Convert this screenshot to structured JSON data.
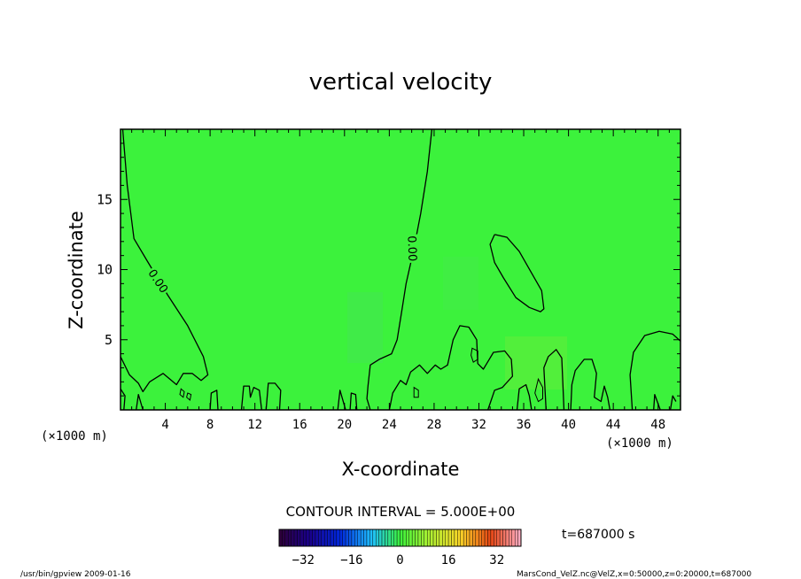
{
  "chart_data": {
    "type": "contour",
    "title": "vertical velocity",
    "xlabel": "X-coordinate",
    "ylabel": "Z-coordinate",
    "x_unit": "(×1000 m)",
    "x_unit_right": "(×1000 m)",
    "xlim": [
      0,
      50
    ],
    "ylim": [
      0,
      20
    ],
    "x_ticks": [
      4,
      8,
      12,
      16,
      20,
      24,
      28,
      32,
      36,
      40,
      44,
      48
    ],
    "y_ticks": [
      5,
      10,
      15
    ],
    "contour_label": "0.00",
    "contour_interval_text": "CONTOUR INTERVAL = 5.000E+00",
    "time_text": "t=687000 s",
    "colorbar": {
      "min": -40,
      "max": 40,
      "ticks": [
        -32,
        -16,
        0,
        16,
        32
      ]
    },
    "zero_contours": [
      {
        "points": [
          [
            0.2,
            20
          ],
          [
            0.6,
            16
          ],
          [
            1.2,
            12.2
          ],
          [
            2.4,
            10.6
          ],
          [
            4.2,
            8.2
          ],
          [
            6,
            6
          ],
          [
            7.4,
            3.8
          ],
          [
            7.8,
            2.5
          ],
          [
            7.2,
            2.1
          ],
          [
            6.4,
            2.6
          ],
          [
            5.6,
            2.6
          ],
          [
            5,
            1.8
          ],
          [
            4.4,
            2.2
          ],
          [
            3.8,
            2.6
          ],
          [
            2.6,
            2
          ],
          [
            2,
            1.3
          ],
          [
            1.6,
            1.9
          ],
          [
            0.8,
            2.5
          ],
          [
            0,
            3.8
          ]
        ]
      },
      {
        "points": [
          [
            27.8,
            20
          ],
          [
            27.4,
            17
          ],
          [
            26.8,
            14
          ],
          [
            26.2,
            11.5
          ],
          [
            25.5,
            9
          ],
          [
            25.1,
            7
          ],
          [
            24.7,
            5
          ],
          [
            24.2,
            4
          ],
          [
            23.1,
            3.6
          ],
          [
            22.3,
            3.2
          ],
          [
            22.1,
            1.7
          ],
          [
            22,
            0.8
          ],
          [
            22.3,
            0
          ]
        ]
      },
      {
        "points": [
          [
            33.4,
            12.5
          ],
          [
            34.5,
            12.3
          ],
          [
            35.6,
            11.3
          ],
          [
            36.6,
            9.9
          ],
          [
            37.6,
            8.5
          ],
          [
            37.8,
            7.2
          ],
          [
            37.5,
            7
          ],
          [
            36.5,
            7.3
          ],
          [
            35.3,
            8
          ],
          [
            34.2,
            9.4
          ],
          [
            33.4,
            10.5
          ],
          [
            33,
            11.8
          ],
          [
            33.4,
            12.5
          ]
        ]
      },
      {
        "points": [
          [
            24,
            0
          ],
          [
            24.3,
            1.2
          ],
          [
            25,
            2.1
          ],
          [
            25.5,
            1.8
          ],
          [
            25.9,
            2.7
          ],
          [
            26.7,
            3.2
          ],
          [
            27.4,
            2.6
          ],
          [
            28.1,
            3.2
          ],
          [
            28.6,
            2.9
          ],
          [
            29.2,
            3.2
          ],
          [
            29.7,
            5
          ],
          [
            30.3,
            6
          ],
          [
            31.1,
            5.9
          ],
          [
            31.8,
            5
          ],
          [
            31.9,
            3.3
          ],
          [
            32.4,
            2.9
          ],
          [
            32.7,
            3.3
          ],
          [
            33.3,
            4.1
          ],
          [
            34.3,
            4.2
          ],
          [
            34.9,
            3.6
          ],
          [
            35,
            2.4
          ],
          [
            34.1,
            1.6
          ],
          [
            33.4,
            1.4
          ],
          [
            32.8,
            0
          ]
        ]
      },
      {
        "points": [
          [
            40.2,
            0
          ],
          [
            40.3,
            1.8
          ],
          [
            40.6,
            2.8
          ],
          [
            41.4,
            3.6
          ],
          [
            42.1,
            3.6
          ],
          [
            42.5,
            2.6
          ],
          [
            42.3,
            0.9
          ],
          [
            42.9,
            0.6
          ],
          [
            43.2,
            1.7
          ],
          [
            43.5,
            0.9
          ],
          [
            43.7,
            0
          ]
        ]
      },
      {
        "points": [
          [
            50,
            4.9
          ],
          [
            49.3,
            5.4
          ],
          [
            48.1,
            5.6
          ],
          [
            46.8,
            5.3
          ],
          [
            45.8,
            4.1
          ],
          [
            45.5,
            2.5
          ],
          [
            45.7,
            0
          ]
        ]
      },
      {
        "points": [
          [
            0,
            1.5
          ],
          [
            0.4,
            1
          ],
          [
            0.3,
            0
          ]
        ]
      },
      {
        "points": [
          [
            1.4,
            0
          ],
          [
            1.6,
            1.1
          ],
          [
            2,
            0
          ]
        ]
      },
      {
        "points": [
          [
            8,
            0
          ],
          [
            8.1,
            1.2
          ],
          [
            8.6,
            1.4
          ],
          [
            8.7,
            0
          ]
        ]
      },
      {
        "points": [
          [
            10.8,
            0
          ],
          [
            11,
            1.7
          ],
          [
            11.5,
            1.7
          ],
          [
            11.6,
            0.9
          ],
          [
            11.9,
            1.6
          ],
          [
            12.4,
            1.4
          ],
          [
            12.6,
            0
          ]
        ]
      },
      {
        "points": [
          [
            13,
            0
          ],
          [
            13.2,
            1.9
          ],
          [
            13.8,
            1.9
          ],
          [
            14.3,
            1.4
          ],
          [
            14.2,
            0
          ]
        ]
      },
      {
        "points": [
          [
            19.4,
            0
          ],
          [
            19.6,
            1.4
          ],
          [
            20.1,
            0
          ]
        ]
      },
      {
        "points": [
          [
            20.5,
            0
          ],
          [
            20.6,
            1.2
          ],
          [
            21,
            1.1
          ],
          [
            21.1,
            0
          ]
        ]
      },
      {
        "points": [
          [
            35.4,
            0
          ],
          [
            35.6,
            1.5
          ],
          [
            36.2,
            1.8
          ],
          [
            36.5,
            1
          ],
          [
            36.7,
            0
          ]
        ]
      },
      {
        "points": [
          [
            39.6,
            0
          ],
          [
            39.4,
            3.7
          ],
          [
            38.9,
            4.3
          ],
          [
            38.2,
            3.8
          ],
          [
            37.8,
            3
          ],
          [
            38,
            0
          ]
        ]
      },
      {
        "points": [
          [
            47.6,
            0
          ],
          [
            47.7,
            1.1
          ],
          [
            48.2,
            0
          ]
        ]
      },
      {
        "points": [
          [
            49.1,
            0
          ],
          [
            49.3,
            1
          ],
          [
            49.6,
            0.6
          ]
        ]
      }
    ],
    "closed_cells": [
      {
        "points": [
          [
            31.4,
            4.4
          ],
          [
            31.9,
            4.2
          ],
          [
            31.9,
            3.6
          ],
          [
            31.5,
            3.4
          ],
          [
            31.3,
            3.9
          ],
          [
            31.4,
            4.4
          ]
        ]
      },
      {
        "points": [
          [
            37.3,
            2.2
          ],
          [
            37.7,
            1.6
          ],
          [
            37.7,
            0.8
          ],
          [
            37.3,
            0.6
          ],
          [
            37,
            1.2
          ],
          [
            37.3,
            2.2
          ]
        ]
      },
      {
        "points": [
          [
            26.2,
            1.6
          ],
          [
            26.6,
            1.4
          ],
          [
            26.6,
            0.9
          ],
          [
            26.2,
            0.9
          ],
          [
            26.2,
            1.6
          ]
        ]
      },
      {
        "points": [
          [
            5.4,
            1.5
          ],
          [
            5.7,
            1.3
          ],
          [
            5.6,
            0.9
          ],
          [
            5.3,
            1.1
          ],
          [
            5.4,
            1.5
          ]
        ]
      },
      {
        "points": [
          [
            6,
            1.2
          ],
          [
            6.3,
            1.1
          ],
          [
            6.2,
            0.7
          ],
          [
            5.9,
            0.9
          ],
          [
            6,
            1.2
          ]
        ]
      }
    ],
    "contour_label_positions": [
      [
        3.4,
        9.2,
        56
      ],
      [
        26.1,
        11.5,
        88
      ]
    ]
  },
  "footer": {
    "left": "/usr/bin/gpview   2009-01-16",
    "right": "MarsCond_VelZ.nc@VelZ,x=0:50000,z=0:20000,t=687000"
  }
}
